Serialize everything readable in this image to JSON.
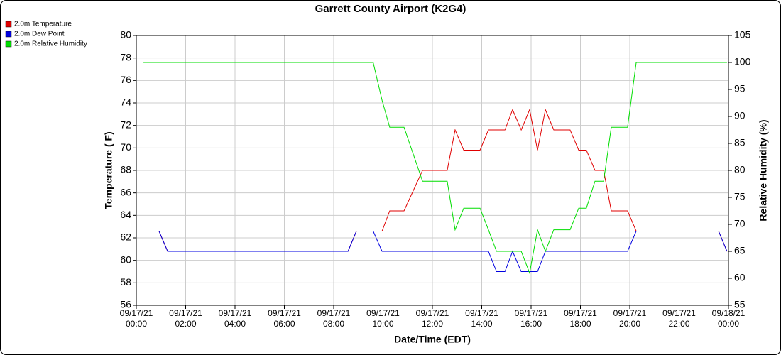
{
  "chart_data": {
    "type": "line",
    "title": "Garrett County Airport (K2G4)",
    "x_label": "Date/Time (EDT)",
    "y_label": "Temperature ( F)",
    "y2_label": "Relative Humidity (%)",
    "x": [
      0.29,
      0.92,
      1.27,
      8.58,
      8.92,
      9.6,
      9.96,
      10.27,
      10.85,
      11.6,
      12.6,
      12.92,
      13.27,
      13.93,
      14.27,
      14.6,
      14.94,
      15.25,
      15.6,
      15.94,
      16.26,
      16.58,
      16.92,
      17.58,
      17.93,
      18.24,
      18.59,
      18.94,
      19.25,
      19.91,
      20.26,
      23.6,
      23.94
    ],
    "series": [
      {
        "name": "2.0m Temperature",
        "color": "#e00000",
        "values": [
          62.6,
          62.6,
          60.8,
          60.8,
          62.6,
          62.6,
          62.6,
          64.4,
          64.4,
          68.0,
          68.0,
          71.6,
          69.8,
          69.8,
          71.6,
          71.6,
          71.6,
          73.4,
          71.6,
          73.4,
          69.8,
          73.4,
          71.6,
          71.6,
          69.8,
          69.8,
          68.0,
          68.0,
          64.4,
          64.4,
          62.6,
          62.6,
          60.8
        ]
      },
      {
        "name": "2.0m Dew Point",
        "color": "#0000e0",
        "values": [
          62.6,
          62.6,
          60.8,
          60.8,
          62.6,
          62.6,
          60.8,
          60.8,
          60.8,
          60.8,
          60.8,
          60.8,
          60.8,
          60.8,
          60.8,
          59.0,
          59.0,
          60.8,
          59.0,
          59.0,
          59.0,
          60.8,
          60.8,
          60.8,
          60.8,
          60.8,
          60.8,
          60.8,
          60.8,
          60.8,
          62.6,
          62.6,
          60.8
        ]
      },
      {
        "name": "2.0m Relative Humidity",
        "color": "#00dd00",
        "axis": "y2",
        "values": [
          100,
          100,
          100,
          100,
          100,
          100,
          93,
          88,
          88,
          78,
          78,
          69,
          73,
          73,
          69,
          65,
          65,
          65,
          65,
          61,
          69,
          65,
          69,
          69,
          73,
          73,
          78,
          78,
          88,
          88,
          100,
          100,
          100
        ]
      }
    ],
    "xlim": [
      0,
      24
    ],
    "xticks": [
      {
        "value": 0,
        "label": [
          "09/17/21",
          "00:00"
        ]
      },
      {
        "value": 2,
        "label": [
          "09/17/21",
          "02:00"
        ]
      },
      {
        "value": 4,
        "label": [
          "09/17/21",
          "04:00"
        ]
      },
      {
        "value": 6,
        "label": [
          "09/17/21",
          "06:00"
        ]
      },
      {
        "value": 8,
        "label": [
          "09/17/21",
          "08:00"
        ]
      },
      {
        "value": 10,
        "label": [
          "09/17/21",
          "10:00"
        ]
      },
      {
        "value": 12,
        "label": [
          "09/17/21",
          "12:00"
        ]
      },
      {
        "value": 14,
        "label": [
          "09/17/21",
          "14:00"
        ]
      },
      {
        "value": 16,
        "label": [
          "09/17/21",
          "16:00"
        ]
      },
      {
        "value": 18,
        "label": [
          "09/17/21",
          "18:00"
        ]
      },
      {
        "value": 20,
        "label": [
          "09/17/21",
          "20:00"
        ]
      },
      {
        "value": 22,
        "label": [
          "09/17/21",
          "22:00"
        ]
      },
      {
        "value": 24,
        "label": [
          "09/18/21",
          "00:00"
        ]
      }
    ],
    "ylim": [
      56,
      80
    ],
    "yticks": [
      56,
      58,
      60,
      62,
      64,
      66,
      68,
      70,
      72,
      74,
      76,
      78,
      80
    ],
    "y2lim": [
      55,
      105
    ],
    "y2ticks": [
      55,
      60,
      65,
      70,
      75,
      80,
      85,
      90,
      95,
      100,
      105
    ],
    "grid": true,
    "legend": "top-left"
  }
}
